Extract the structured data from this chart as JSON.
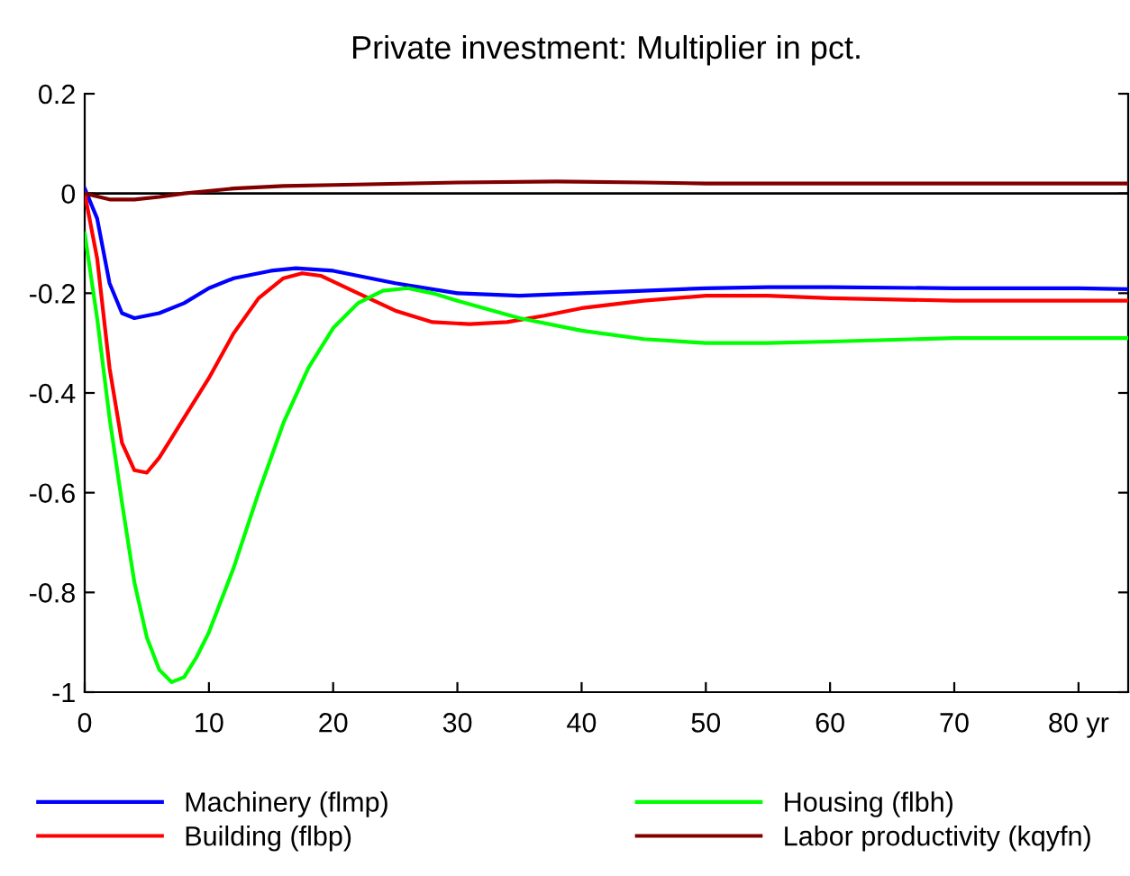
{
  "chart_data": {
    "type": "line",
    "title": "Private investment: Multiplier in pct.",
    "xlim": [
      0,
      84
    ],
    "xticks": [
      0,
      10,
      20,
      30,
      40,
      50,
      60,
      70,
      {
        "value": 80,
        "label": "80 yr"
      }
    ],
    "ylim": [
      -1,
      0.2
    ],
    "yticks": [
      {
        "value": 0.2,
        "label": "0.2"
      },
      0,
      {
        "value": -0.2,
        "label": "-0.2"
      },
      {
        "value": -0.4,
        "label": "-0.4"
      },
      {
        "value": -0.6,
        "label": "-0.6"
      },
      {
        "value": -0.8,
        "label": "-0.8"
      },
      -1
    ],
    "grid": false,
    "legend": "bottom",
    "line_style": "solid",
    "marker": "none",
    "ref_lines": [
      {
        "axis": "y",
        "value": 0,
        "color": "#000000"
      }
    ],
    "series": [
      {
        "name": "Machinery (flmp)",
        "color": "#0000ff",
        "x": [
          0,
          1,
          2,
          3,
          4,
          6,
          8,
          10,
          12,
          15,
          17,
          20,
          25,
          30,
          35,
          40,
          45,
          50,
          55,
          60,
          70,
          80,
          84
        ],
        "values": [
          0.01,
          -0.05,
          -0.18,
          -0.24,
          -0.25,
          -0.24,
          -0.22,
          -0.19,
          -0.17,
          -0.155,
          -0.15,
          -0.155,
          -0.18,
          -0.2,
          -0.205,
          -0.2,
          -0.195,
          -0.19,
          -0.188,
          -0.188,
          -0.19,
          -0.19,
          -0.192
        ]
      },
      {
        "name": "Building (flbp)",
        "color": "#ff0000",
        "x": [
          0,
          1,
          2,
          3,
          4,
          5,
          6,
          7,
          8,
          10,
          12,
          14,
          16,
          17.5,
          19,
          22,
          25,
          28,
          31,
          34,
          37,
          40,
          45,
          50,
          55,
          60,
          70,
          84
        ],
        "values": [
          0,
          -0.13,
          -0.35,
          -0.5,
          -0.555,
          -0.56,
          -0.53,
          -0.49,
          -0.45,
          -0.37,
          -0.28,
          -0.21,
          -0.17,
          -0.16,
          -0.165,
          -0.2,
          -0.235,
          -0.258,
          -0.262,
          -0.258,
          -0.245,
          -0.23,
          -0.215,
          -0.205,
          -0.205,
          -0.21,
          -0.215,
          -0.215
        ]
      },
      {
        "name": "Housing (flbh)",
        "color": "#00ff00",
        "x": [
          0,
          1,
          2,
          3,
          4,
          5,
          6,
          7,
          8,
          9,
          10,
          12,
          14,
          16,
          18,
          20,
          22,
          24,
          26,
          28,
          30,
          35,
          40,
          45,
          50,
          55,
          60,
          70,
          84
        ],
        "values": [
          -0.08,
          -0.25,
          -0.45,
          -0.62,
          -0.78,
          -0.89,
          -0.955,
          -0.98,
          -0.97,
          -0.93,
          -0.88,
          -0.75,
          -0.6,
          -0.46,
          -0.35,
          -0.27,
          -0.22,
          -0.195,
          -0.19,
          -0.2,
          -0.215,
          -0.25,
          -0.275,
          -0.292,
          -0.3,
          -0.3,
          -0.297,
          -0.29,
          -0.29
        ]
      },
      {
        "name": "Labor productivity (kqyfn)",
        "color": "#800000",
        "x": [
          0,
          2,
          4,
          6,
          8,
          12,
          16,
          20,
          30,
          38,
          45,
          50,
          84
        ],
        "values": [
          0,
          -0.012,
          -0.012,
          -0.007,
          0,
          0.01,
          0.015,
          0.017,
          0.022,
          0.024,
          0.022,
          0.02,
          0.02
        ]
      }
    ]
  }
}
